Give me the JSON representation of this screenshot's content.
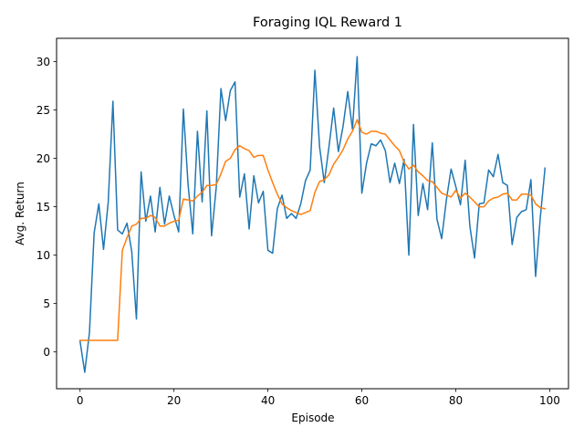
{
  "chart_data": {
    "type": "line",
    "title": "Foraging IQL Reward 1",
    "xlabel": "Episode",
    "ylabel": "Avg. Return",
    "xlim": [
      -5,
      104
    ],
    "ylim": [
      -3.8,
      32.4
    ],
    "xticks": [
      0,
      20,
      40,
      60,
      80,
      100
    ],
    "yticks": [
      0,
      5,
      10,
      15,
      20,
      25,
      30
    ],
    "grid": false,
    "colors": {
      "series1": "#1f77b4",
      "series2": "#ff7f0e"
    },
    "series": [
      {
        "values": [
          1.1,
          -2.1,
          2.0,
          12.3,
          15.3,
          10.6,
          15.5,
          25.9,
          12.6,
          12.2,
          13.3,
          10.4,
          3.4,
          18.6,
          13.5,
          16.1,
          12.4,
          17.0,
          13.2,
          16.1,
          14.1,
          12.4,
          25.1,
          17.3,
          12.2,
          22.8,
          15.5,
          24.9,
          12.0,
          17.0,
          27.2,
          23.9,
          27.0,
          27.9,
          16.0,
          18.4,
          12.7,
          18.2,
          15.4,
          16.6,
          10.5,
          10.2,
          14.8,
          16.2,
          13.8,
          14.3,
          13.8,
          15.3,
          17.7,
          18.8,
          29.1,
          21.2,
          17.5,
          21.2,
          25.2,
          20.7,
          23.3,
          26.9,
          23.0,
          30.5,
          16.4,
          19.5,
          21.5,
          21.3,
          21.9,
          20.8,
          17.5,
          19.5,
          17.4,
          19.9,
          10.0,
          23.5,
          14.1,
          17.4,
          14.7,
          21.6,
          13.7,
          11.7,
          15.7,
          18.9,
          17.1,
          15.2,
          19.8,
          13.0,
          9.7,
          15.3,
          15.4,
          18.8,
          18.1,
          20.4,
          17.5,
          17.2,
          11.1,
          13.9,
          14.5,
          14.7,
          17.8,
          7.8,
          13.9,
          19.0
        ]
      },
      {
        "values": [
          1.2,
          1.2,
          1.2,
          1.2,
          1.2,
          1.2,
          1.2,
          1.2,
          1.2,
          10.5,
          11.8,
          13.0,
          13.2,
          13.8,
          13.8,
          14.1,
          13.9,
          13.0,
          13.0,
          13.3,
          13.5,
          13.6,
          15.8,
          15.7,
          15.6,
          16.1,
          16.5,
          17.2,
          17.2,
          17.3,
          18.4,
          19.7,
          20.0,
          20.9,
          21.3,
          21.0,
          20.8,
          20.1,
          20.3,
          20.3,
          18.8,
          17.5,
          16.3,
          15.3,
          14.9,
          14.6,
          14.4,
          14.2,
          14.4,
          14.6,
          16.5,
          17.6,
          17.8,
          18.3,
          19.4,
          20.1,
          20.9,
          22.0,
          22.8,
          24.0,
          22.7,
          22.5,
          22.8,
          22.8,
          22.6,
          22.5,
          21.9,
          21.3,
          20.8,
          19.6,
          18.9,
          19.3,
          18.6,
          18.2,
          17.7,
          17.6,
          17.0,
          16.4,
          16.2,
          16.0,
          16.7,
          15.9,
          16.4,
          16.0,
          15.5,
          15.0,
          15.0,
          15.6,
          15.9,
          16.0,
          16.3,
          16.4,
          15.7,
          15.7,
          16.3,
          16.3,
          16.2,
          15.3,
          14.9,
          14.8
        ]
      }
    ]
  }
}
